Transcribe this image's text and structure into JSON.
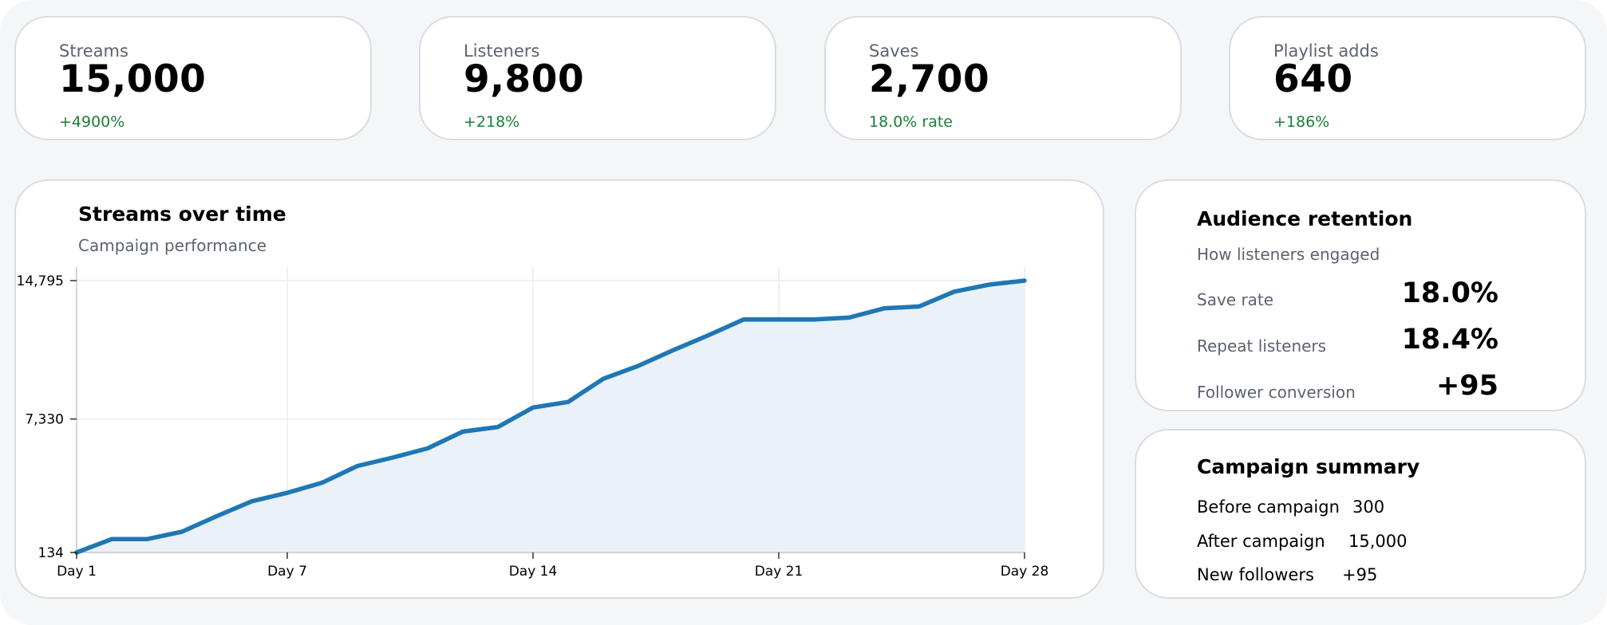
{
  "kpis": [
    {
      "label": "Streams",
      "value": "15,000",
      "delta": "+4900%"
    },
    {
      "label": "Listeners",
      "value": "9,800",
      "delta": "+218%"
    },
    {
      "label": "Saves",
      "value": "2,700",
      "delta": "18.0% rate"
    },
    {
      "label": "Playlist adds",
      "value": "640",
      "delta": "+186%"
    }
  ],
  "streams_panel": {
    "title": "Streams over time",
    "subtitle": "Campaign performance"
  },
  "retention": {
    "title": "Audience retention",
    "subtitle": "How listeners engaged",
    "rows": [
      {
        "label": "Save rate",
        "value": "18.0%"
      },
      {
        "label": "Repeat listeners",
        "value": "18.4%"
      },
      {
        "label": "Follower conversion",
        "value": "+95"
      }
    ]
  },
  "summary": {
    "title": "Campaign summary",
    "rows": [
      {
        "label": "Before campaign",
        "value": "300"
      },
      {
        "label": "After campaign",
        "value": "15,000"
      },
      {
        "label": "New followers",
        "value": "+95"
      }
    ]
  },
  "colors": {
    "line": "#1f77b4",
    "fill": "#eaf1f9",
    "positive": "#1a7f37",
    "muted": "#5b6270"
  },
  "chart_data": {
    "type": "area",
    "title": "Streams over time",
    "subtitle": "Campaign performance",
    "xlabel": "",
    "ylabel": "",
    "x": [
      1,
      2,
      3,
      4,
      5,
      6,
      7,
      8,
      9,
      10,
      11,
      12,
      13,
      14,
      15,
      16,
      17,
      18,
      19,
      20,
      21,
      22,
      23,
      24,
      25,
      26,
      27,
      28
    ],
    "values": [
      134,
      850,
      850,
      1250,
      2100,
      2900,
      3350,
      3900,
      4800,
      5250,
      5750,
      6650,
      6900,
      7950,
      8250,
      9500,
      10200,
      11050,
      11850,
      12700,
      12700,
      12700,
      12800,
      13300,
      13400,
      14200,
      14580,
      14795
    ],
    "x_ticks": [
      1,
      7,
      14,
      21,
      28
    ],
    "x_tick_labels": [
      "Day 1",
      "Day 7",
      "Day 14",
      "Day 21",
      "Day 28"
    ],
    "y_ticks": [
      134,
      7330,
      14795
    ],
    "y_tick_labels": [
      "134",
      "7,330",
      "14,795"
    ],
    "xlim": [
      1,
      28
    ],
    "ylim": [
      134,
      14795
    ],
    "grid": true,
    "legend": "none"
  }
}
